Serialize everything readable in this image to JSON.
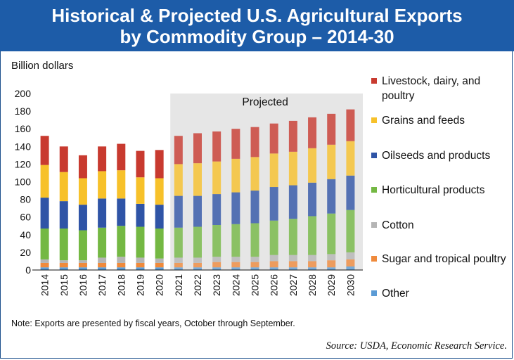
{
  "title_line1": "Historical & Projected U.S. Agricultural Exports",
  "title_line2": "by Commodity Group – 2014-30",
  "note": "Note: Exports are presented by fiscal years, October through September.",
  "source": "Source: USDA, Economic Research Service.",
  "colors": {
    "title_bar": "#1d5ca8",
    "projected_band": "#e6e6e6"
  },
  "chart_data": {
    "type": "bar",
    "stacked": true,
    "ylabel": "Billion dollars",
    "ylim": [
      0,
      200
    ],
    "yticks": [
      0,
      20,
      40,
      60,
      80,
      100,
      120,
      140,
      160,
      180,
      200
    ],
    "projected_label": "Projected",
    "projected_start": "2021",
    "categories": [
      "2014",
      "2015",
      "2016",
      "2017",
      "2018",
      "2019",
      "2020",
      "2021",
      "2022",
      "2023",
      "2024",
      "2025",
      "2026",
      "2027",
      "2028",
      "2029",
      "2030"
    ],
    "series": [
      {
        "name": "Other",
        "color": "#5b9bd5",
        "values": [
          3,
          3,
          3,
          3,
          3,
          3,
          3,
          3,
          3,
          3,
          3,
          3,
          3,
          3,
          3,
          3,
          4
        ]
      },
      {
        "name": "Sugar and tropical poultry",
        "color": "#ef8a3c",
        "values": [
          5,
          5,
          5,
          5,
          5,
          5,
          5,
          5,
          5,
          6,
          6,
          6,
          7,
          7,
          7,
          8,
          8
        ]
      },
      {
        "name": "Cotton",
        "color": "#b5b5b5",
        "values": [
          4,
          3,
          3,
          6,
          7,
          6,
          5,
          6,
          6,
          6,
          6,
          6,
          7,
          7,
          7,
          7,
          8
        ]
      },
      {
        "name": "Horticultural products",
        "color": "#74b843",
        "values": [
          35,
          36,
          34,
          34,
          35,
          35,
          34,
          34,
          35,
          36,
          37,
          38,
          39,
          41,
          44,
          46,
          48
        ]
      },
      {
        "name": "Oilseeds and products",
        "color": "#2f54a6",
        "values": [
          35,
          31,
          29,
          33,
          31,
          26,
          27,
          36,
          35,
          35,
          36,
          37,
          38,
          38,
          38,
          39,
          39
        ]
      },
      {
        "name": "Grains and feeds",
        "color": "#f7c12a",
        "values": [
          37,
          33,
          30,
          31,
          32,
          30,
          30,
          36,
          37,
          37,
          38,
          38,
          38,
          38,
          39,
          39,
          39
        ]
      },
      {
        "name": "Livestock, dairy, and poultry",
        "color": "#c83a2f",
        "values": [
          33,
          29,
          26,
          28,
          30,
          30,
          32,
          32,
          34,
          34,
          34,
          34,
          34,
          35,
          35,
          35,
          36
        ]
      }
    ],
    "legend": [
      {
        "label": "Livestock, dairy, and poultry",
        "color": "#c83a2f"
      },
      {
        "label": "Grains and feeds",
        "color": "#f7c12a"
      },
      {
        "label": "Oilseeds and products",
        "color": "#2f54a6"
      },
      {
        "label": "Horticultural products",
        "color": "#74b843"
      },
      {
        "label": "Cotton",
        "color": "#b5b5b5"
      },
      {
        "label": "Sugar and tropical poultry",
        "color": "#ef8a3c"
      },
      {
        "label": "Other",
        "color": "#5b9bd5"
      }
    ]
  }
}
